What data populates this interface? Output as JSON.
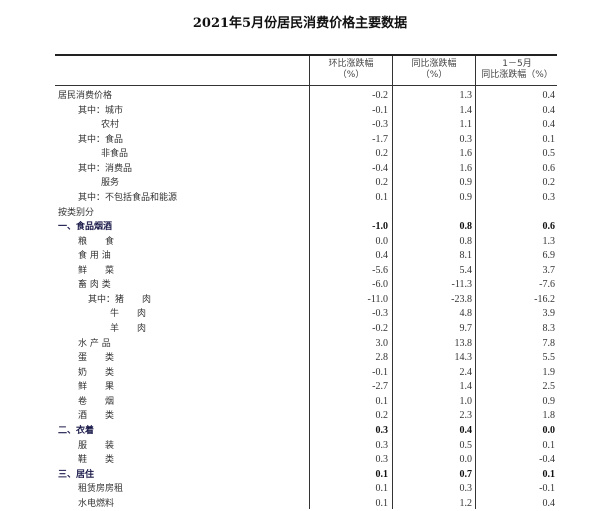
{
  "title": "2021年5月份居民消费价格主要数据",
  "headers": {
    "mom": [
      "环比涨跌幅",
      "（%）"
    ],
    "yoy": [
      "同比涨跌幅",
      "（%）"
    ],
    "ytd": [
      "1－5月",
      "同比涨跌幅（%）"
    ]
  },
  "rows": [
    {
      "label": "居民消费价格",
      "indent": 0,
      "bold": false,
      "mom": "-0.2",
      "yoy": "1.3",
      "ytd": "0.4"
    },
    {
      "label": "其中：城市",
      "indent": 1,
      "bold": false,
      "mom": "-0.1",
      "yoy": "1.4",
      "ytd": "0.4"
    },
    {
      "label": "农村",
      "indent": 2,
      "bold": false,
      "mom": "-0.3",
      "yoy": "1.1",
      "ytd": "0.4"
    },
    {
      "label": "其中：食品",
      "indent": 1,
      "bold": false,
      "mom": "-1.7",
      "yoy": "0.3",
      "ytd": "0.1"
    },
    {
      "label": "非食品",
      "indent": 2,
      "bold": false,
      "mom": "0.2",
      "yoy": "1.6",
      "ytd": "0.5"
    },
    {
      "label": "其中：消费品",
      "indent": 1,
      "bold": false,
      "mom": "-0.4",
      "yoy": "1.6",
      "ytd": "0.6"
    },
    {
      "label": "服务",
      "indent": 2,
      "bold": false,
      "mom": "0.2",
      "yoy": "0.9",
      "ytd": "0.2"
    },
    {
      "label": "其中：不包括食品和能源",
      "indent": 1,
      "bold": false,
      "mom": "0.1",
      "yoy": "0.9",
      "ytd": "0.3"
    },
    {
      "label": "按类别分",
      "indent": 0,
      "bold": false,
      "mom": "",
      "yoy": "",
      "ytd": ""
    },
    {
      "label": "一、食品烟酒",
      "indent": 0,
      "bold": true,
      "mom": "-1.0",
      "yoy": "0.8",
      "ytd": "0.6"
    },
    {
      "label": "粮　　食",
      "indent": 1,
      "bold": false,
      "mom": "0.0",
      "yoy": "0.8",
      "ytd": "1.3"
    },
    {
      "label": "食 用 油",
      "indent": 1,
      "bold": false,
      "mom": "0.4",
      "yoy": "8.1",
      "ytd": "6.9"
    },
    {
      "label": "鲜　　菜",
      "indent": 1,
      "bold": false,
      "mom": "-5.6",
      "yoy": "5.4",
      "ytd": "3.7"
    },
    {
      "label": "畜 肉 类",
      "indent": 1,
      "bold": false,
      "mom": "-6.0",
      "yoy": "-11.3",
      "ytd": "-7.6"
    },
    {
      "label": "其中：猪　　肉",
      "indent": 3,
      "bold": false,
      "mom": "-11.0",
      "yoy": "-23.8",
      "ytd": "-16.2"
    },
    {
      "label": "牛　　肉",
      "indent": 4,
      "bold": false,
      "mom": "-0.3",
      "yoy": "4.8",
      "ytd": "3.9"
    },
    {
      "label": "羊　　肉",
      "indent": 4,
      "bold": false,
      "mom": "-0.2",
      "yoy": "9.7",
      "ytd": "8.3"
    },
    {
      "label": "水 产 品",
      "indent": 1,
      "bold": false,
      "mom": "3.0",
      "yoy": "13.8",
      "ytd": "7.8"
    },
    {
      "label": "蛋　　类",
      "indent": 1,
      "bold": false,
      "mom": "2.8",
      "yoy": "14.3",
      "ytd": "5.5"
    },
    {
      "label": "奶　　类",
      "indent": 1,
      "bold": false,
      "mom": "-0.1",
      "yoy": "2.4",
      "ytd": "1.9"
    },
    {
      "label": "鲜　　果",
      "indent": 1,
      "bold": false,
      "mom": "-2.7",
      "yoy": "1.4",
      "ytd": "2.5"
    },
    {
      "label": "卷　　烟",
      "indent": 1,
      "bold": false,
      "mom": "0.1",
      "yoy": "1.0",
      "ytd": "0.9"
    },
    {
      "label": "酒　　类",
      "indent": 1,
      "bold": false,
      "mom": "0.2",
      "yoy": "2.3",
      "ytd": "1.8"
    },
    {
      "label": "二、衣着",
      "indent": 0,
      "bold": true,
      "mom": "0.3",
      "yoy": "0.4",
      "ytd": "0.0"
    },
    {
      "label": "服　　装",
      "indent": 1,
      "bold": false,
      "mom": "0.3",
      "yoy": "0.5",
      "ytd": "0.1"
    },
    {
      "label": "鞋　　类",
      "indent": 1,
      "bold": false,
      "mom": "0.3",
      "yoy": "0.0",
      "ytd": "-0.4"
    },
    {
      "label": "三、居住",
      "indent": 0,
      "bold": true,
      "mom": "0.1",
      "yoy": "0.7",
      "ytd": "0.1"
    },
    {
      "label": "租赁房房租",
      "indent": 1,
      "bold": false,
      "mom": "0.1",
      "yoy": "0.3",
      "ytd": "-0.1"
    },
    {
      "label": "水电燃料",
      "indent": 1,
      "bold": false,
      "mom": "0.1",
      "yoy": "1.2",
      "ytd": "0.4"
    }
  ]
}
